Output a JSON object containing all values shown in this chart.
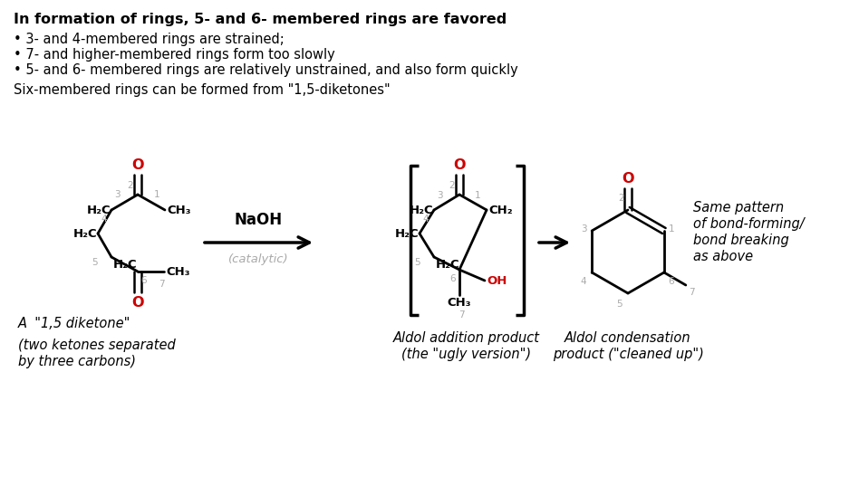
{
  "title_bold": "In formation of rings, 5- and 6- membered rings are favored",
  "bullet1": "• 3- and 4-membered rings are strained;",
  "bullet2": "• 7- and higher-membered rings form too slowly",
  "bullet3": "• 5- and 6- membered rings are relatively unstrained, and also form quickly",
  "subtitle": "Six-membered rings can be formed from \"1,5-diketones\"",
  "label1a": "A  \"1,5 diketone\"",
  "label1b": "(two ketones separated",
  "label1c": "by three carbons)",
  "label2a": "Aldol addition product",
  "label2b": "(the \"ugly version\")",
  "label3a": "Aldol condensation",
  "label3b": "product (\"cleaned up\")",
  "reagent": "NaOH",
  "reagent_sub": "(catalytic)",
  "side1": "Same pattern",
  "side2": "of bond-forming/",
  "side3": "bond breaking",
  "side4": "as above",
  "bg_color": "#ffffff",
  "black": "#000000",
  "red": "#cc0000",
  "gray": "#aaaaaa"
}
